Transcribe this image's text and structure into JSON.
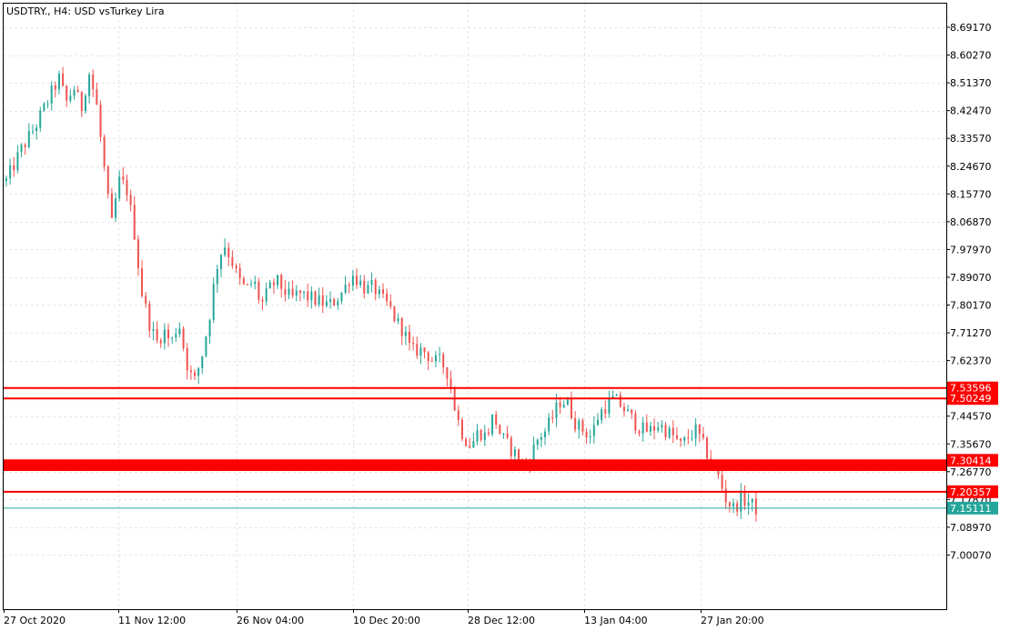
{
  "header": {
    "title": "USDTRY., H4:  USD vsTurkey Lira"
  },
  "colors": {
    "bull": "#26a69a",
    "bear": "#ef5350",
    "level": "#ff0000",
    "current": "#26a69a",
    "grid": "#e6e6e6",
    "frame": "#000000"
  },
  "chart_data": {
    "type": "candlestick",
    "title": "USDTRY., H4:  USD vsTurkey Lira",
    "ylim": [
      6.96,
      8.74
    ],
    "y_ticks": [
      "8.69170",
      "8.60270",
      "8.51370",
      "8.42470",
      "8.33570",
      "8.24670",
      "8.15770",
      "8.06870",
      "7.97970",
      "7.89070",
      "7.80170",
      "7.71270",
      "7.62370",
      "7.53470",
      "7.44570",
      "7.35670",
      "7.26770",
      "7.17870",
      "7.08970",
      "7.00070"
    ],
    "x_ticks": [
      "27 Oct 2020",
      "11 Nov 12:00",
      "26 Nov 04:00",
      "10 Dec 20:00",
      "28 Dec 12:00",
      "13 Jan 04:00",
      "27 Jan 20:00"
    ],
    "grid": true,
    "levels": [
      {
        "label": "7.53596",
        "value": 7.53596
      },
      {
        "label": "7.50249",
        "value": 7.50249
      },
      {
        "label": "7.30414",
        "value": 7.30414
      },
      {
        "label": "7.20357",
        "value": 7.20357
      }
    ],
    "zone": {
      "from": 7.27,
      "to": 7.30414
    },
    "current": {
      "label": "7.15111",
      "value": 7.15111
    },
    "close_path": [
      [
        0,
        8.2
      ],
      [
        2,
        8.3
      ],
      [
        4,
        8.38
      ],
      [
        7,
        8.53
      ],
      [
        8,
        8.45
      ],
      [
        9,
        8.5
      ],
      [
        10,
        8.43
      ],
      [
        11,
        8.55
      ],
      [
        12,
        8.45
      ],
      [
        14,
        8.05
      ],
      [
        15,
        8.2
      ],
      [
        16,
        8.18
      ],
      [
        17,
        8.05
      ],
      [
        18,
        7.85
      ],
      [
        19,
        7.75
      ],
      [
        20,
        7.68
      ],
      [
        21,
        7.72
      ],
      [
        22,
        7.68
      ],
      [
        23,
        7.75
      ],
      [
        24,
        7.62
      ],
      [
        25,
        7.55
      ],
      [
        26,
        7.63
      ],
      [
        27,
        7.75
      ],
      [
        28,
        7.92
      ],
      [
        29,
        8.0
      ],
      [
        30,
        7.95
      ],
      [
        31,
        7.88
      ],
      [
        32,
        7.85
      ],
      [
        33,
        7.88
      ],
      [
        34,
        7.8
      ],
      [
        35,
        7.85
      ],
      [
        36,
        7.88
      ],
      [
        38,
        7.82
      ],
      [
        39,
        7.84
      ],
      [
        41,
        7.82
      ],
      [
        43,
        7.8
      ],
      [
        44,
        7.82
      ],
      [
        45,
        7.85
      ],
      [
        46,
        7.9
      ],
      [
        47,
        7.88
      ],
      [
        48,
        7.85
      ],
      [
        49,
        7.86
      ],
      [
        50,
        7.82
      ],
      [
        51,
        7.8
      ],
      [
        52,
        7.75
      ],
      [
        53,
        7.72
      ],
      [
        54,
        7.65
      ],
      [
        55,
        7.66
      ],
      [
        56,
        7.65
      ],
      [
        57,
        7.62
      ],
      [
        58,
        7.62
      ],
      [
        59,
        7.58
      ],
      [
        60,
        7.45
      ],
      [
        61,
        7.38
      ],
      [
        62,
        7.35
      ],
      [
        63,
        7.4
      ],
      [
        64,
        7.38
      ],
      [
        65,
        7.45
      ],
      [
        66,
        7.38
      ],
      [
        67,
        7.35
      ],
      [
        68,
        7.32
      ],
      [
        69,
        7.28
      ],
      [
        70,
        7.32
      ],
      [
        71,
        7.38
      ],
      [
        72,
        7.4
      ],
      [
        73,
        7.45
      ],
      [
        74,
        7.5
      ],
      [
        75,
        7.48
      ],
      [
        76,
        7.42
      ],
      [
        77,
        7.4
      ],
      [
        78,
        7.38
      ],
      [
        79,
        7.45
      ],
      [
        80,
        7.48
      ],
      [
        81,
        7.5
      ],
      [
        82,
        7.48
      ],
      [
        83,
        7.45
      ],
      [
        84,
        7.42
      ],
      [
        85,
        7.4
      ],
      [
        86,
        7.4
      ],
      [
        87,
        7.42
      ],
      [
        88,
        7.4
      ],
      [
        89,
        7.38
      ],
      [
        90,
        7.35
      ],
      [
        91,
        7.38
      ],
      [
        92,
        7.4
      ],
      [
        93,
        7.35
      ],
      [
        94,
        7.3
      ],
      [
        95,
        7.25
      ],
      [
        96,
        7.18
      ],
      [
        97,
        7.15
      ],
      [
        98,
        7.18
      ],
      [
        99,
        7.17
      ],
      [
        100,
        7.15
      ]
    ]
  }
}
